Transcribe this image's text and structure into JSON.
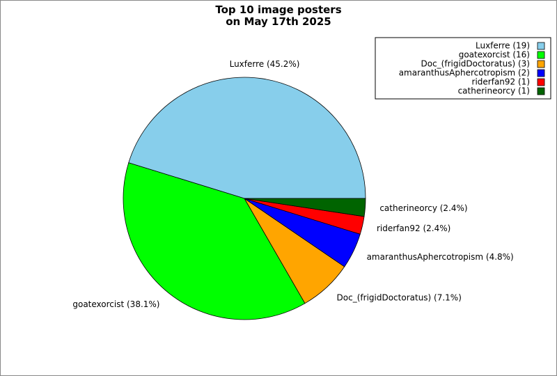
{
  "chart_data": {
    "type": "pie",
    "title": "Top 10 image posters\non May 17th 2025",
    "categories": [
      "Luxferre (19)",
      "goatexorcist (16)",
      "Doc_(frigidDoctoratus) (3)",
      "amaranthusAphercotropism (2)",
      "riderfan92 (1)",
      "catherineorcy (1)"
    ],
    "values": [
      19,
      16,
      3,
      2,
      1,
      1
    ],
    "value_labels": [
      "Luxferre (45.2%)",
      "goatexorcist (38.1%)",
      "Doc_(frigidDoctoratus) (7.1%)",
      "amaranthusAphercotropism (4.8%)",
      "riderfan92 (2.4%)",
      "catherineorcy (2.4%)"
    ],
    "colors": [
      "#87ceeb",
      "#00ff00",
      "#ffa500",
      "#0000ff",
      "#ff0000",
      "#006400"
    ],
    "legend": "upper right"
  }
}
